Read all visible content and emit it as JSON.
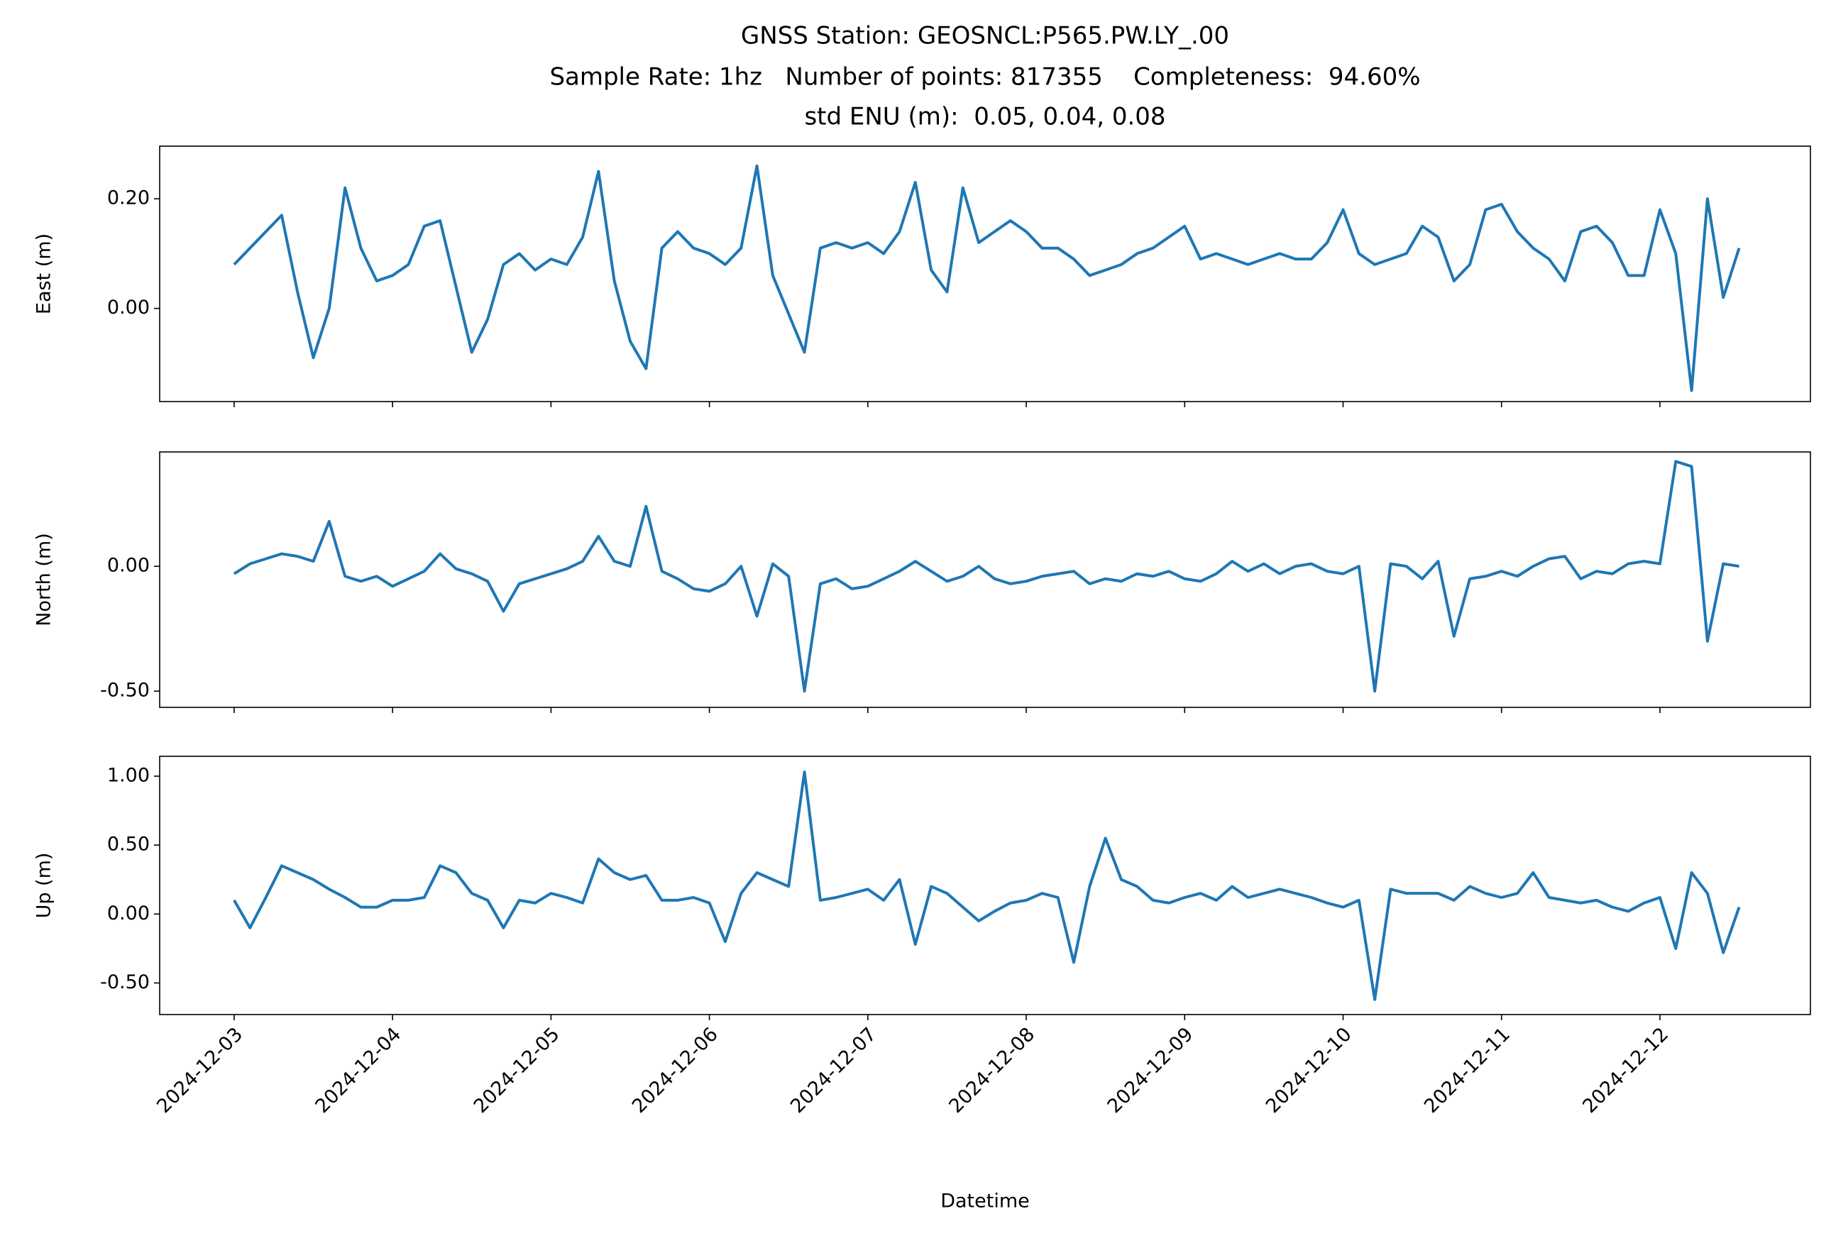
{
  "chart_data": {
    "type": "line",
    "title": [
      "GNSS Station: GEOSNCL:P565.PW.LY_.00",
      "Sample Rate: 1hz   Number of points: 817355    Completeness:  94.60%",
      "std ENU (m):  0.05, 0.04, 0.08"
    ],
    "xlabel": "Datetime",
    "xlim": [
      -0.47,
      9.95
    ],
    "xticks": [
      {
        "value": 0,
        "label": "2024-12-03"
      },
      {
        "value": 1,
        "label": "2024-12-04"
      },
      {
        "value": 2,
        "label": "2024-12-05"
      },
      {
        "value": 3,
        "label": "2024-12-06"
      },
      {
        "value": 4,
        "label": "2024-12-07"
      },
      {
        "value": 5,
        "label": "2024-12-08"
      },
      {
        "value": 6,
        "label": "2024-12-09"
      },
      {
        "value": 7,
        "label": "2024-12-10"
      },
      {
        "value": 8,
        "label": "2024-12-11"
      },
      {
        "value": 9,
        "label": "2024-12-12"
      }
    ],
    "x": [
      0,
      0.1,
      0.2,
      0.3,
      0.4,
      0.5,
      0.6,
      0.7,
      0.8,
      0.9,
      1,
      1.1,
      1.2,
      1.3,
      1.4,
      1.5,
      1.6,
      1.7,
      1.8,
      1.9,
      2,
      2.1,
      2.2,
      2.3,
      2.4,
      2.5,
      2.6,
      2.7,
      2.8,
      2.9,
      3,
      3.1,
      3.2,
      3.3,
      3.4,
      3.5,
      3.6,
      3.7,
      3.8,
      3.9,
      4,
      4.1,
      4.2,
      4.3,
      4.4,
      4.5,
      4.6,
      4.7,
      4.8,
      4.9,
      5,
      5.1,
      5.2,
      5.3,
      5.4,
      5.5,
      5.6,
      5.7,
      5.8,
      5.9,
      6,
      6.1,
      6.2,
      6.3,
      6.4,
      6.5,
      6.6,
      6.7,
      6.8,
      6.9,
      7,
      7.1,
      7.2,
      7.3,
      7.4,
      7.5,
      7.6,
      7.7,
      7.8,
      7.9,
      8,
      8.1,
      8.2,
      8.3,
      8.4,
      8.5,
      8.6,
      8.7,
      8.8,
      8.9,
      9,
      9.1,
      9.2,
      9.3,
      9.4,
      9.5
    ],
    "panels": [
      {
        "ylabel": "East (m)",
        "color": "#1f77b4",
        "ylim": [
          -0.17,
          0.296
        ],
        "yticks": [
          {
            "value": 0,
            "label": "0.00"
          },
          {
            "value": 0.2,
            "label": "0.20"
          }
        ],
        "values": [
          0.08,
          0.11,
          0.14,
          0.17,
          0.03,
          -0.09,
          0.0,
          0.22,
          0.11,
          0.05,
          0.06,
          0.08,
          0.15,
          0.16,
          0.04,
          -0.08,
          -0.02,
          0.08,
          0.1,
          0.07,
          0.09,
          0.08,
          0.13,
          0.25,
          0.05,
          -0.06,
          -0.11,
          0.11,
          0.14,
          0.11,
          0.1,
          0.08,
          0.11,
          0.26,
          0.06,
          -0.01,
          -0.08,
          0.11,
          0.12,
          0.11,
          0.12,
          0.1,
          0.14,
          0.23,
          0.07,
          0.03,
          0.22,
          0.12,
          0.14,
          0.16,
          0.14,
          0.11,
          0.11,
          0.09,
          0.06,
          0.07,
          0.08,
          0.1,
          0.11,
          0.13,
          0.15,
          0.09,
          0.1,
          0.09,
          0.08,
          0.09,
          0.1,
          0.09,
          0.09,
          0.12,
          0.18,
          0.1,
          0.08,
          0.09,
          0.1,
          0.15,
          0.13,
          0.05,
          0.08,
          0.18,
          0.19,
          0.14,
          0.11,
          0.09,
          0.05,
          0.14,
          0.15,
          0.12,
          0.06,
          0.06,
          0.18,
          0.1,
          -0.15,
          0.2,
          0.02,
          0.11
        ]
      },
      {
        "ylabel": "North (m)",
        "color": "#1f77b4",
        "ylim": [
          -0.565,
          0.458
        ],
        "yticks": [
          {
            "value": -0.5,
            "label": "-0.50"
          },
          {
            "value": 0,
            "label": "0.00"
          }
        ],
        "values": [
          -0.03,
          0.01,
          0.03,
          0.05,
          0.04,
          0.02,
          0.18,
          -0.04,
          -0.06,
          -0.04,
          -0.08,
          -0.05,
          -0.02,
          0.05,
          -0.01,
          -0.03,
          -0.06,
          -0.18,
          -0.07,
          -0.05,
          -0.03,
          -0.01,
          0.02,
          0.12,
          0.02,
          0.0,
          0.24,
          -0.02,
          -0.05,
          -0.09,
          -0.1,
          -0.07,
          0.0,
          -0.2,
          0.01,
          -0.04,
          -0.5,
          -0.07,
          -0.05,
          -0.09,
          -0.08,
          -0.05,
          -0.02,
          0.02,
          -0.02,
          -0.06,
          -0.04,
          0.0,
          -0.05,
          -0.07,
          -0.06,
          -0.04,
          -0.03,
          -0.02,
          -0.07,
          -0.05,
          -0.06,
          -0.03,
          -0.04,
          -0.02,
          -0.05,
          -0.06,
          -0.03,
          0.02,
          -0.02,
          0.01,
          -0.03,
          0.0,
          0.01,
          -0.02,
          -0.03,
          0.0,
          -0.5,
          0.01,
          0.0,
          -0.05,
          0.02,
          -0.28,
          -0.05,
          -0.04,
          -0.02,
          -0.04,
          0.0,
          0.03,
          0.04,
          -0.05,
          -0.02,
          -0.03,
          0.01,
          0.02,
          0.01,
          0.42,
          0.4,
          -0.3,
          0.01,
          0.0
        ]
      },
      {
        "ylabel": "Up (m)",
        "color": "#1f77b4",
        "ylim": [
          -0.729,
          1.144
        ],
        "yticks": [
          {
            "value": -0.5,
            "label": "-0.50"
          },
          {
            "value": 0,
            "label": "0.00"
          },
          {
            "value": 0.5,
            "label": "0.50"
          },
          {
            "value": 1,
            "label": "1.00"
          }
        ],
        "values": [
          0.1,
          -0.1,
          0.12,
          0.35,
          0.3,
          0.25,
          0.18,
          0.12,
          0.05,
          0.05,
          0.1,
          0.1,
          0.12,
          0.35,
          0.3,
          0.15,
          0.1,
          -0.1,
          0.1,
          0.08,
          0.15,
          0.12,
          0.08,
          0.4,
          0.3,
          0.25,
          0.28,
          0.1,
          0.1,
          0.12,
          0.08,
          -0.2,
          0.15,
          0.3,
          0.25,
          0.2,
          1.03,
          0.1,
          0.12,
          0.15,
          0.18,
          0.1,
          0.25,
          -0.22,
          0.2,
          0.15,
          0.05,
          -0.05,
          0.02,
          0.08,
          0.1,
          0.15,
          0.12,
          -0.35,
          0.2,
          0.55,
          0.25,
          0.2,
          0.1,
          0.08,
          0.12,
          0.15,
          0.1,
          0.2,
          0.12,
          0.15,
          0.18,
          0.15,
          0.12,
          0.08,
          0.05,
          0.1,
          -0.62,
          0.18,
          0.15,
          0.15,
          0.15,
          0.1,
          0.2,
          0.15,
          0.12,
          0.15,
          0.3,
          0.12,
          0.1,
          0.08,
          0.1,
          0.05,
          0.02,
          0.08,
          0.12,
          -0.25,
          0.3,
          0.15,
          -0.28,
          0.05
        ]
      }
    ]
  }
}
